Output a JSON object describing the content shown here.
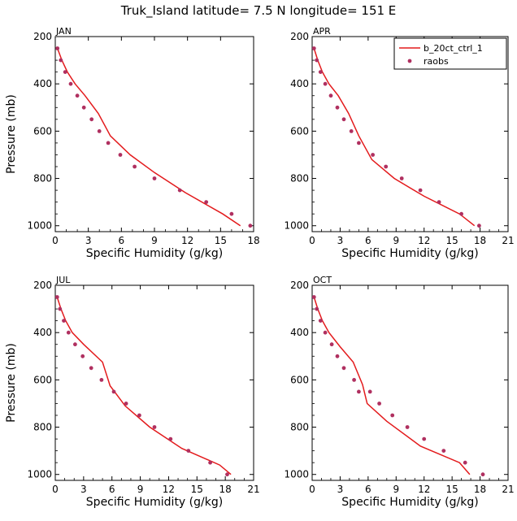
{
  "title": "Truk_Island   latitude= 7.5 N longitude= 151 E",
  "colors": {
    "model": "#e31a1c",
    "obs": "#b03060"
  },
  "legend": {
    "model_label": "b_20ct_ctrl_1",
    "obs_label": "raobs",
    "placement": "top-right of APR panel"
  },
  "chart_data": [
    {
      "type": "line",
      "panel": "JAN",
      "xlabel": "Specific Humidity (g/kg)",
      "ylabel": "Pressure (mb)",
      "xlim": [
        0,
        18
      ],
      "xticks": [
        0,
        3,
        6,
        9,
        12,
        15,
        18
      ],
      "ylim": [
        200,
        1025
      ],
      "yticks": [
        200,
        400,
        600,
        800,
        1000
      ],
      "y_inverted": true,
      "series": [
        {
          "name": "b_20ct_ctrl_1",
          "style": "line",
          "points": [
            [
              0.2,
              250
            ],
            [
              0.6,
              300
            ],
            [
              1.1,
              350
            ],
            [
              1.8,
              400
            ],
            [
              2.7,
              450
            ],
            [
              3.9,
              525
            ],
            [
              5.0,
              620
            ],
            [
              6.8,
              700
            ],
            [
              9.0,
              775
            ],
            [
              11.8,
              860
            ],
            [
              15.2,
              950
            ],
            [
              16.8,
              1000
            ]
          ]
        },
        {
          "name": "raobs",
          "style": "points",
          "points": [
            [
              0.2,
              250
            ],
            [
              0.5,
              300
            ],
            [
              0.9,
              350
            ],
            [
              1.4,
              400
            ],
            [
              2.0,
              450
            ],
            [
              2.6,
              500
            ],
            [
              3.3,
              550
            ],
            [
              4.0,
              600
            ],
            [
              4.8,
              650
            ],
            [
              5.9,
              700
            ],
            [
              7.2,
              750
            ],
            [
              9.0,
              800
            ],
            [
              11.3,
              850
            ],
            [
              13.7,
              900
            ],
            [
              16.0,
              950
            ],
            [
              17.7,
              1000
            ]
          ]
        }
      ]
    },
    {
      "type": "line",
      "panel": "APR",
      "xlabel": "Specific Humidity (g/kg)",
      "ylabel": "",
      "xlim": [
        0,
        21
      ],
      "xticks": [
        0,
        3,
        6,
        9,
        12,
        15,
        18,
        21
      ],
      "ylim": [
        200,
        1025
      ],
      "yticks": [
        200,
        400,
        600,
        800,
        1000
      ],
      "y_inverted": true,
      "series": [
        {
          "name": "b_20ct_ctrl_1",
          "style": "line",
          "points": [
            [
              0.2,
              250
            ],
            [
              0.6,
              300
            ],
            [
              1.1,
              350
            ],
            [
              1.8,
              400
            ],
            [
              2.8,
              450
            ],
            [
              3.9,
              525
            ],
            [
              5.0,
              620
            ],
            [
              6.4,
              720
            ],
            [
              8.8,
              800
            ],
            [
              12.0,
              875
            ],
            [
              15.8,
              950
            ],
            [
              17.4,
              1000
            ]
          ]
        },
        {
          "name": "raobs",
          "style": "points",
          "points": [
            [
              0.2,
              250
            ],
            [
              0.5,
              300
            ],
            [
              0.9,
              350
            ],
            [
              1.4,
              400
            ],
            [
              2.0,
              450
            ],
            [
              2.7,
              500
            ],
            [
              3.4,
              550
            ],
            [
              4.2,
              600
            ],
            [
              5.0,
              650
            ],
            [
              6.5,
              700
            ],
            [
              7.9,
              750
            ],
            [
              9.6,
              800
            ],
            [
              11.6,
              850
            ],
            [
              13.6,
              900
            ],
            [
              16.0,
              950
            ],
            [
              17.9,
              1000
            ]
          ]
        }
      ]
    },
    {
      "type": "line",
      "panel": "JUL",
      "xlabel": "Specific Humidity (g/kg)",
      "ylabel": "Pressure (mb)",
      "xlim": [
        0,
        21
      ],
      "xticks": [
        0,
        3,
        6,
        9,
        12,
        15,
        18,
        21
      ],
      "ylim": [
        200,
        1025
      ],
      "yticks": [
        200,
        400,
        600,
        800,
        1000
      ],
      "y_inverted": true,
      "series": [
        {
          "name": "b_20ct_ctrl_1",
          "style": "line",
          "points": [
            [
              0.2,
              250
            ],
            [
              0.6,
              300
            ],
            [
              1.1,
              350
            ],
            [
              1.8,
              400
            ],
            [
              3.0,
              450
            ],
            [
              5.0,
              525
            ],
            [
              5.8,
              625
            ],
            [
              7.4,
              710
            ],
            [
              10.0,
              800
            ],
            [
              13.4,
              890
            ],
            [
              17.4,
              960
            ],
            [
              18.6,
              1000
            ]
          ]
        },
        {
          "name": "raobs",
          "style": "points",
          "points": [
            [
              0.2,
              250
            ],
            [
              0.5,
              300
            ],
            [
              0.9,
              350
            ],
            [
              1.4,
              400
            ],
            [
              2.1,
              450
            ],
            [
              2.9,
              500
            ],
            [
              3.8,
              550
            ],
            [
              4.9,
              600
            ],
            [
              6.2,
              650
            ],
            [
              7.5,
              700
            ],
            [
              8.9,
              750
            ],
            [
              10.5,
              800
            ],
            [
              12.2,
              850
            ],
            [
              14.1,
              900
            ],
            [
              16.4,
              950
            ],
            [
              18.2,
              1000
            ]
          ]
        }
      ]
    },
    {
      "type": "line",
      "panel": "OCT",
      "xlabel": "Specific Humidity (g/kg)",
      "ylabel": "",
      "xlim": [
        0,
        21
      ],
      "xticks": [
        0,
        3,
        6,
        9,
        12,
        15,
        18,
        21
      ],
      "ylim": [
        200,
        1025
      ],
      "yticks": [
        200,
        400,
        600,
        800,
        1000
      ],
      "y_inverted": true,
      "series": [
        {
          "name": "b_20ct_ctrl_1",
          "style": "line",
          "points": [
            [
              0.2,
              250
            ],
            [
              0.6,
              300
            ],
            [
              1.1,
              350
            ],
            [
              1.8,
              400
            ],
            [
              3.0,
              460
            ],
            [
              4.4,
              525
            ],
            [
              5.4,
              620
            ],
            [
              5.9,
              700
            ],
            [
              8.0,
              775
            ],
            [
              11.6,
              880
            ],
            [
              15.8,
              950
            ],
            [
              16.9,
              1000
            ]
          ]
        },
        {
          "name": "raobs",
          "style": "points",
          "points": [
            [
              0.2,
              250
            ],
            [
              0.5,
              300
            ],
            [
              0.9,
              350
            ],
            [
              1.4,
              400
            ],
            [
              2.1,
              450
            ],
            [
              2.7,
              500
            ],
            [
              3.4,
              550
            ],
            [
              4.5,
              600
            ],
            [
              5.0,
              650
            ],
            [
              6.2,
              650
            ],
            [
              7.2,
              700
            ],
            [
              8.6,
              750
            ],
            [
              10.2,
              800
            ],
            [
              12.0,
              850
            ],
            [
              14.1,
              900
            ],
            [
              16.4,
              950
            ],
            [
              18.3,
              1000
            ]
          ]
        }
      ]
    }
  ]
}
